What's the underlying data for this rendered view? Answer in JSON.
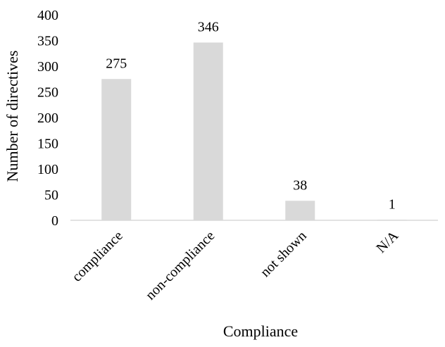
{
  "chart_data": {
    "type": "bar",
    "title": "",
    "xlabel": "Compliance",
    "ylabel": "Number of directives",
    "categories": [
      "compliance",
      "non-compliance",
      "not shown",
      "N/A"
    ],
    "values": [
      275,
      346,
      38,
      1
    ],
    "data_labels": [
      "275",
      "346",
      "38",
      "1"
    ],
    "ylim": [
      0,
      400
    ],
    "yticks": [
      "0",
      "50",
      "100",
      "150",
      "200",
      "250",
      "300",
      "350",
      "400"
    ],
    "grid": false,
    "legend": "none",
    "bar_color": "#d9d9d9",
    "axis_color": "#d9d9d9"
  }
}
